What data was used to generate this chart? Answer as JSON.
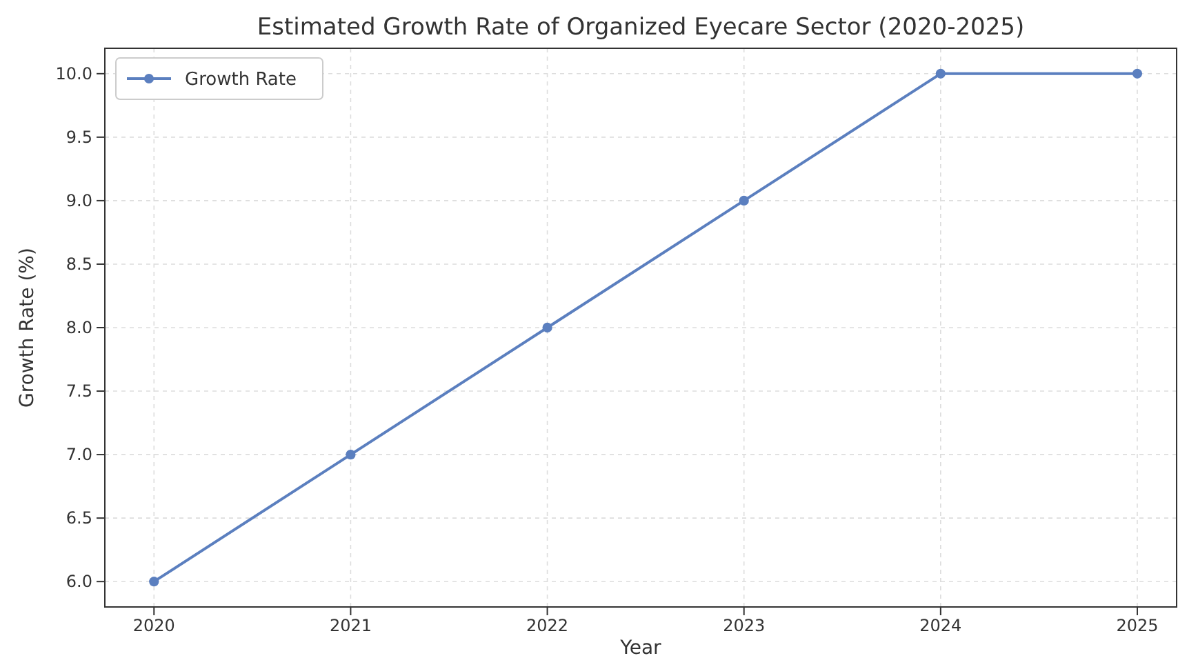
{
  "chart_data": {
    "type": "line",
    "title": "Estimated Growth Rate of Organized Eyecare Sector (2020-2025)",
    "xlabel": "Year",
    "ylabel": "Growth Rate (%)",
    "x": [
      2020,
      2021,
      2022,
      2023,
      2024,
      2025
    ],
    "series": [
      {
        "name": "Growth Rate",
        "color": "#5b7fbf",
        "values": [
          6,
          7,
          8,
          9,
          10,
          10
        ]
      }
    ],
    "xlim": [
      2019.75,
      2025.2
    ],
    "xticks": [
      2020,
      2021,
      2022,
      2023,
      2024,
      2025
    ],
    "ylim": [
      5.8,
      10.2
    ],
    "yticks": [
      {
        "value": 6,
        "label": "6.0"
      },
      {
        "value": 6.5,
        "label": "6.5"
      },
      {
        "value": 7,
        "label": "7.0"
      },
      {
        "value": 7.5,
        "label": "7.5"
      },
      {
        "value": 8,
        "label": "8.0"
      },
      {
        "value": 8.5,
        "label": "8.5"
      },
      {
        "value": 9,
        "label": "9.0"
      },
      {
        "value": 9.5,
        "label": "9.5"
      },
      {
        "value": 10,
        "label": "10.0"
      }
    ],
    "grid": true,
    "legend": "top left",
    "marker": "circle",
    "line_style": "solid"
  }
}
